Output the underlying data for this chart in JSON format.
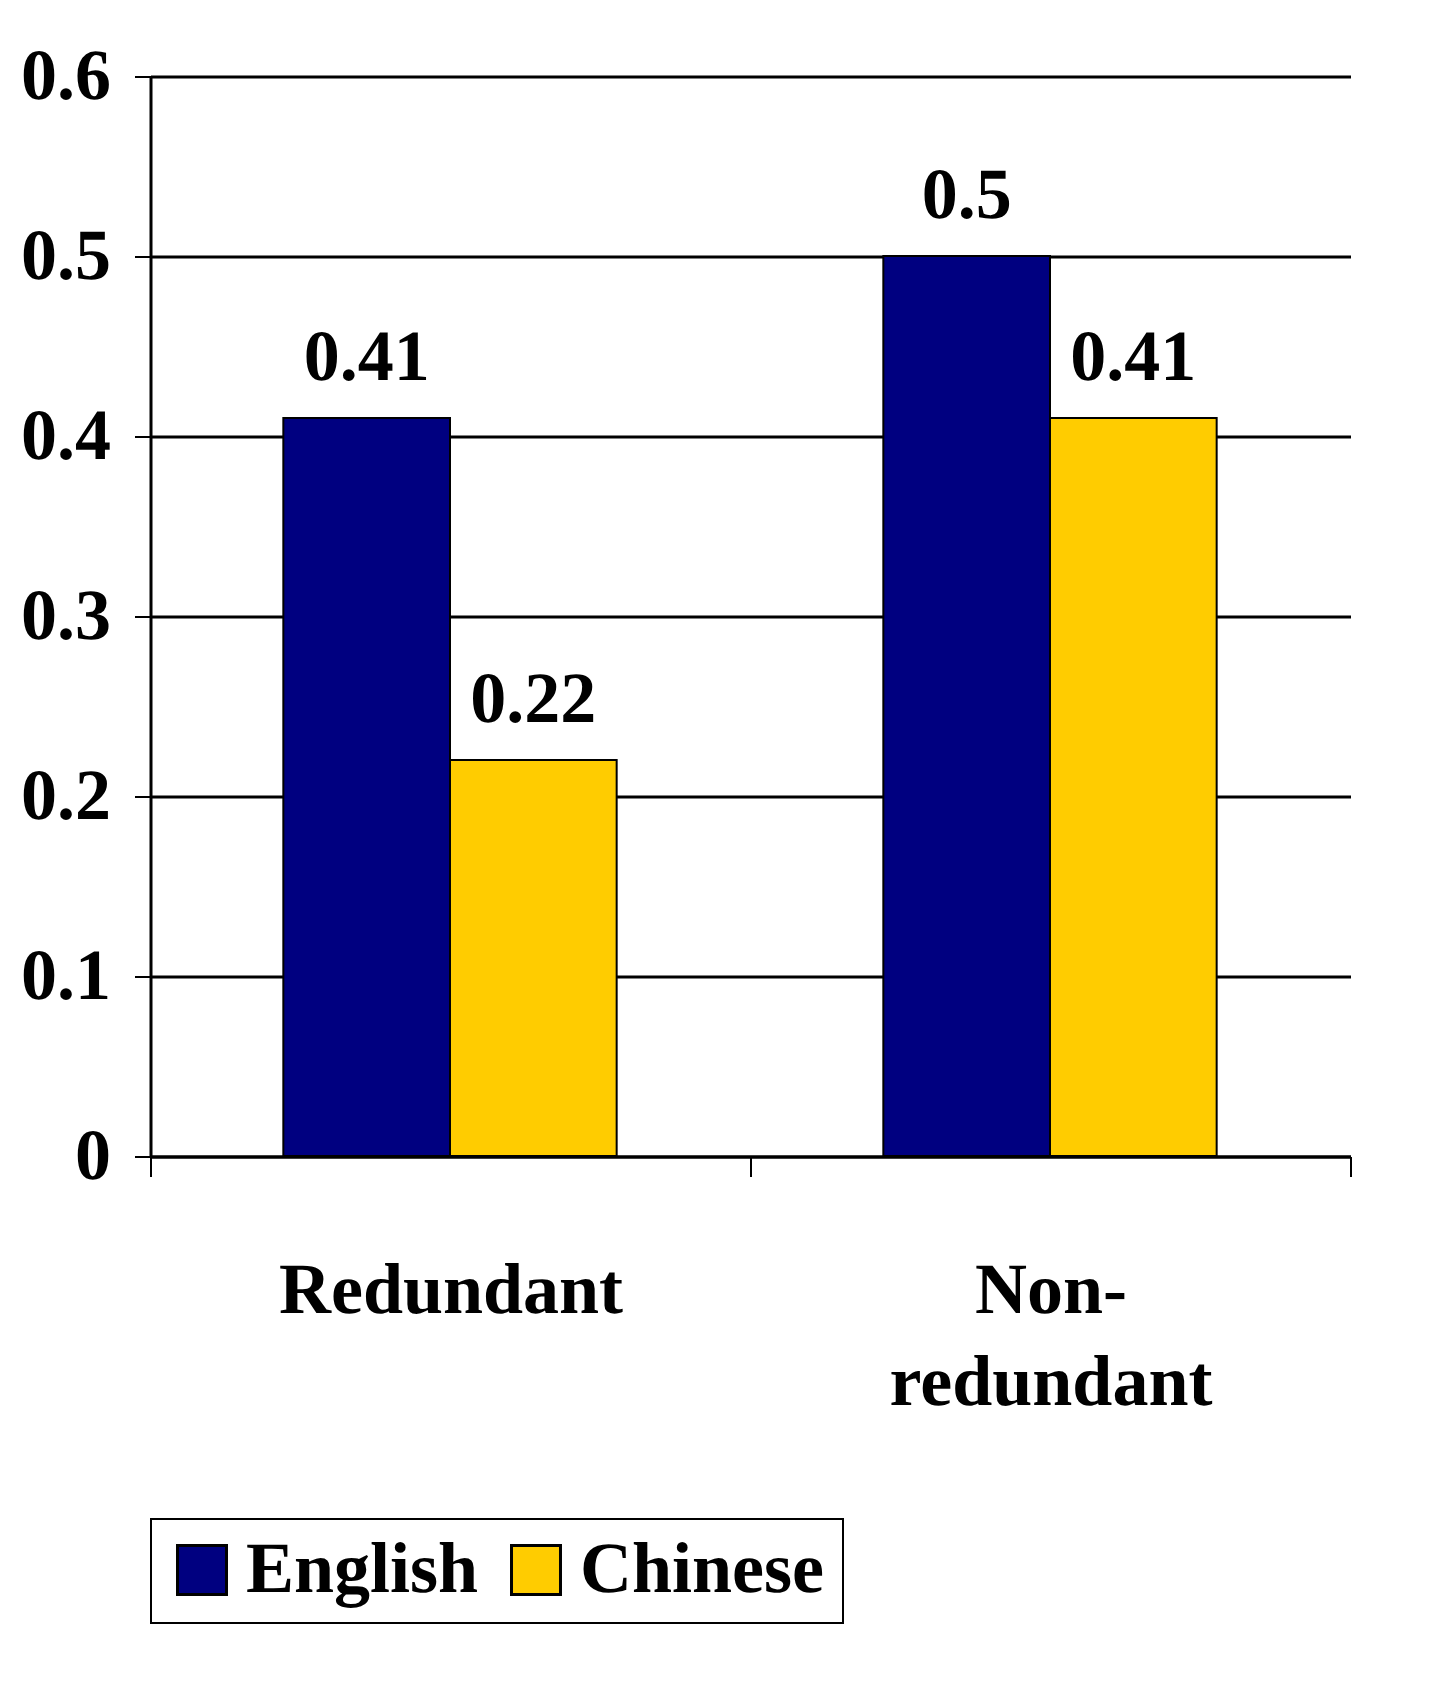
{
  "chart_data": {
    "type": "bar",
    "categories": [
      "Redundant",
      "Non-redundant"
    ],
    "series": [
      {
        "name": "English",
        "color": "#000080",
        "values": [
          0.41,
          0.5
        ]
      },
      {
        "name": "Chinese",
        "color": "#ffcc00",
        "values": [
          0.22,
          0.41
        ]
      }
    ],
    "ylim": [
      0,
      0.6
    ],
    "yticks": [
      0,
      0.1,
      0.2,
      0.3,
      0.4,
      0.5,
      0.6
    ],
    "grid": "y",
    "legend": "bottom",
    "data_labels": true
  }
}
